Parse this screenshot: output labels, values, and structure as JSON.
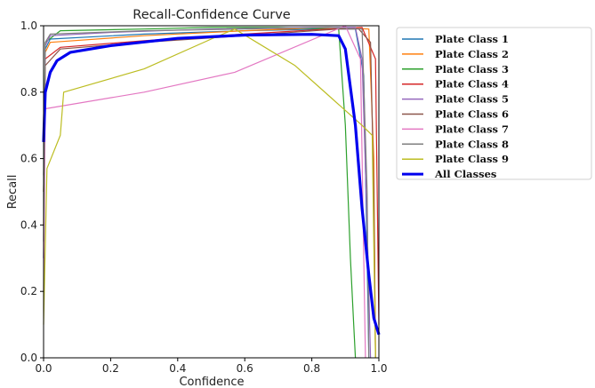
{
  "chart_data": {
    "type": "line",
    "title": "Recall-Confidence Curve",
    "xlabel": "Confidence",
    "ylabel": "Recall",
    "xlim": [
      0,
      1
    ],
    "ylim": [
      0,
      1
    ],
    "xticks": [
      "0.0",
      "0.2",
      "0.4",
      "0.6",
      "0.8",
      "1.0"
    ],
    "yticks": [
      "0.0",
      "0.2",
      "0.4",
      "0.6",
      "0.8",
      "1.0"
    ],
    "grid": false,
    "legend_position": "outside-right",
    "series": [
      {
        "name": "Plate Class 1",
        "color": "#1f77b4",
        "width": 1.2,
        "x": [
          0,
          0.005,
          0.02,
          0.3,
          0.6,
          0.85,
          0.93,
          0.955,
          0.965,
          0.97
        ],
        "y": [
          0.3,
          0.93,
          0.96,
          0.975,
          0.985,
          0.99,
          0.99,
          0.85,
          0.3,
          0
        ]
      },
      {
        "name": "Plate Class 2",
        "color": "#ff7f0e",
        "width": 1.2,
        "x": [
          0,
          0.005,
          0.02,
          0.3,
          0.6,
          0.85,
          0.97,
          0.985,
          0.99
        ],
        "y": [
          0.4,
          0.92,
          0.95,
          0.97,
          0.985,
          0.995,
          0.99,
          0.6,
          0
        ]
      },
      {
        "name": "Plate Class 3",
        "color": "#2ca02c",
        "width": 1.2,
        "x": [
          0,
          0.005,
          0.05,
          0.3,
          0.5,
          0.7,
          0.88,
          0.9,
          0.915,
          0.925,
          0.93
        ],
        "y": [
          0.5,
          0.95,
          0.985,
          0.99,
          0.995,
          0.995,
          0.99,
          0.7,
          0.3,
          0.1,
          0
        ]
      },
      {
        "name": "Plate Class 4",
        "color": "#d62728",
        "width": 1.2,
        "x": [
          0,
          0.005,
          0.05,
          0.3,
          0.6,
          0.85,
          0.95,
          0.99,
          1.0
        ],
        "y": [
          0.5,
          0.9,
          0.935,
          0.955,
          0.975,
          0.99,
          0.995,
          0.9,
          0.1
        ]
      },
      {
        "name": "Plate Class 5",
        "color": "#9467bd",
        "width": 1.2,
        "x": [
          0,
          0.005,
          0.02,
          0.2,
          0.5,
          0.8,
          0.93,
          0.95,
          0.965,
          0.975
        ],
        "y": [
          0.3,
          0.94,
          0.97,
          0.98,
          0.99,
          0.995,
          0.995,
          0.9,
          0.4,
          0
        ]
      },
      {
        "name": "Plate Class 6",
        "color": "#8c564b",
        "width": 1.2,
        "x": [
          0,
          0.005,
          0.05,
          0.3,
          0.6,
          0.88,
          0.94,
          0.975,
          0.985,
          0.99
        ],
        "y": [
          0.55,
          0.88,
          0.93,
          0.95,
          0.97,
          0.99,
          0.99,
          0.95,
          0.5,
          0
        ]
      },
      {
        "name": "Plate Class 7",
        "color": "#e377c2",
        "width": 1.2,
        "x": [
          0,
          0.005,
          0.3,
          0.57,
          0.9,
          0.945,
          0.955,
          0.96
        ],
        "y": [
          0.2,
          0.75,
          0.8,
          0.86,
          1.0,
          0.9,
          0.3,
          0
        ]
      },
      {
        "name": "Plate Class 8",
        "color": "#7f7f7f",
        "width": 1.2,
        "x": [
          0,
          0.005,
          0.02,
          0.3,
          0.6,
          0.85,
          0.95,
          0.965,
          0.97
        ],
        "y": [
          0.35,
          0.95,
          0.975,
          0.985,
          0.99,
          0.995,
          0.99,
          0.5,
          0
        ]
      },
      {
        "name": "Plate Class 9",
        "color": "#bcbd22",
        "width": 1.2,
        "x": [
          0,
          0.01,
          0.05,
          0.06,
          0.3,
          0.5,
          0.57,
          0.75,
          0.85,
          0.95,
          0.98,
          0.99
        ],
        "y": [
          0.1,
          0.57,
          0.67,
          0.8,
          0.87,
          0.96,
          0.99,
          0.88,
          0.79,
          0.7,
          0.67,
          0
        ]
      },
      {
        "name": "All Classes",
        "color": "#0000ee",
        "width": 3.2,
        "x": [
          0,
          0.005,
          0.02,
          0.04,
          0.08,
          0.2,
          0.4,
          0.6,
          0.8,
          0.88,
          0.9,
          0.93,
          0.95,
          0.97,
          0.985,
          1.0
        ],
        "y": [
          0.65,
          0.8,
          0.86,
          0.895,
          0.92,
          0.94,
          0.962,
          0.972,
          0.974,
          0.97,
          0.93,
          0.7,
          0.45,
          0.25,
          0.12,
          0.07
        ]
      }
    ]
  }
}
